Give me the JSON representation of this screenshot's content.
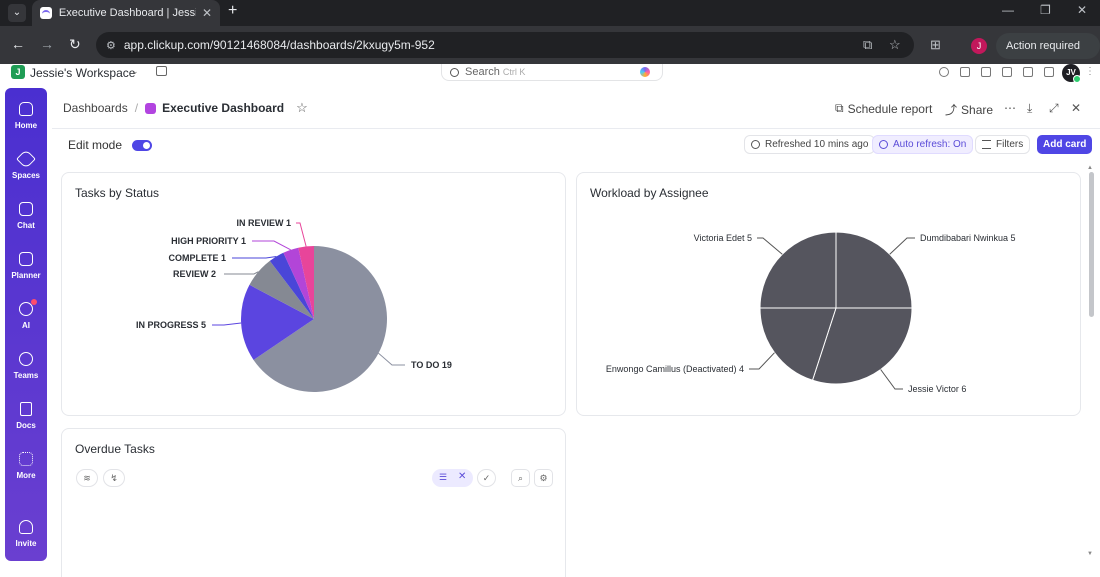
{
  "browser": {
    "tab_title": "Executive Dashboard | Jessie's W",
    "url": "app.clickup.com/90121468084/dashboards/2kxugy5m-952",
    "profile_initial": "J",
    "action_required": "Action required"
  },
  "app": {
    "workspace_initial": "J",
    "workspace_name": "Jessie's Workspace",
    "search_placeholder": "Search",
    "search_shortcut": "Ctrl K",
    "user_initials": "JV"
  },
  "sidebar": {
    "items": [
      {
        "label": "Home",
        "icon": "home-icon"
      },
      {
        "label": "Spaces",
        "icon": "spaces-icon"
      },
      {
        "label": "Chat",
        "icon": "chat-icon"
      },
      {
        "label": "Planner",
        "icon": "planner-icon"
      },
      {
        "label": "AI",
        "icon": "ai-icon"
      },
      {
        "label": "Teams",
        "icon": "teams-icon"
      },
      {
        "label": "Docs",
        "icon": "docs-icon"
      },
      {
        "label": "More",
        "icon": "more-icon"
      },
      {
        "label": "Invite",
        "icon": "invite-icon"
      }
    ]
  },
  "header": {
    "breadcrumb_root": "Dashboards",
    "breadcrumb_sep": "/",
    "breadcrumb_current": "Executive Dashboard",
    "schedule_report": "Schedule report",
    "share": "Share"
  },
  "controls": {
    "edit_mode": "Edit mode",
    "refreshed": "Refreshed 10 mins ago",
    "auto_refresh": "Auto refresh: On",
    "filters": "Filters",
    "add_card": "Add card"
  },
  "cards": {
    "tasks_by_status": "Tasks by Status",
    "workload_by_assignee": "Workload by Assignee",
    "overdue_tasks": "Overdue Tasks"
  },
  "chart_data": [
    {
      "type": "pie",
      "title": "Tasks by Status",
      "slices": [
        {
          "label": "TO DO",
          "value": 19,
          "color": "#8b90a0"
        },
        {
          "label": "IN PROGRESS",
          "value": 5,
          "color": "#5b45e0"
        },
        {
          "label": "REVIEW",
          "value": 2,
          "color": "#858993"
        },
        {
          "label": "COMPLETE",
          "value": 1,
          "color": "#4a46d8"
        },
        {
          "label": "HIGH PRIORITY",
          "value": 1,
          "color": "#b245d8"
        },
        {
          "label": "IN REVIEW",
          "value": 1,
          "color": "#e8459a"
        }
      ]
    },
    {
      "type": "pie",
      "title": "Workload by Assignee",
      "slices": [
        {
          "label": "Dumdibabari Nwinkua",
          "value": 5,
          "color": "#55555e"
        },
        {
          "label": "Jessie Victor",
          "value": 6,
          "color": "#55555e"
        },
        {
          "label": "Enwongo Camillus (Deactivated)",
          "value": 4,
          "color": "#55555e"
        },
        {
          "label": "Victoria Edet",
          "value": 5,
          "color": "#55555e"
        }
      ]
    }
  ]
}
